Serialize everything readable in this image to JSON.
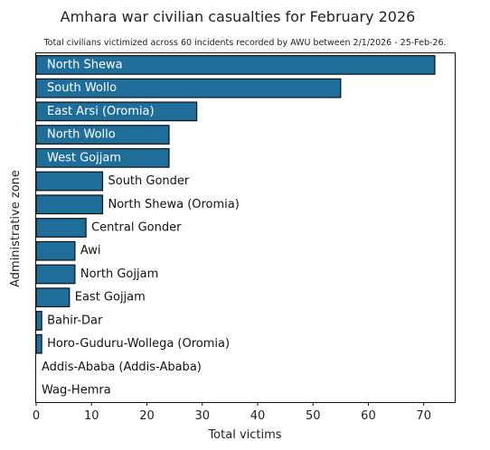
{
  "chart_data": {
    "type": "bar",
    "orientation": "horizontal",
    "title": "Amhara war civilian casualties for February 2026",
    "subtitle": "Total civilians victimized across 60 incidents recorded by AWU between 2/1/2026 - 25-Feb-26.",
    "xlabel": "Total victims",
    "ylabel": "Administrative zone",
    "xlim": [
      0,
      75.6
    ],
    "xticks": [
      0,
      10,
      20,
      30,
      40,
      50,
      60,
      70
    ],
    "grid": false,
    "bar_color": "#1f6e99",
    "categories": [
      "North Shewa",
      "South Wollo",
      "East Arsi (Oromia)",
      "North Wollo",
      "West Gojjam",
      "South Gonder",
      "North Shewa (Oromia)",
      "Central Gonder",
      "Awi",
      "North Gojjam",
      "East Gojjam",
      "Bahir-Dar",
      "Horo-Guduru-Wollega (Oromia)",
      "Addis-Ababa (Addis-Ababa)",
      "Wag-Hemra"
    ],
    "values": [
      72,
      55,
      29,
      24,
      24,
      12,
      12,
      9,
      7,
      7,
      6,
      1,
      1,
      0,
      0
    ]
  }
}
